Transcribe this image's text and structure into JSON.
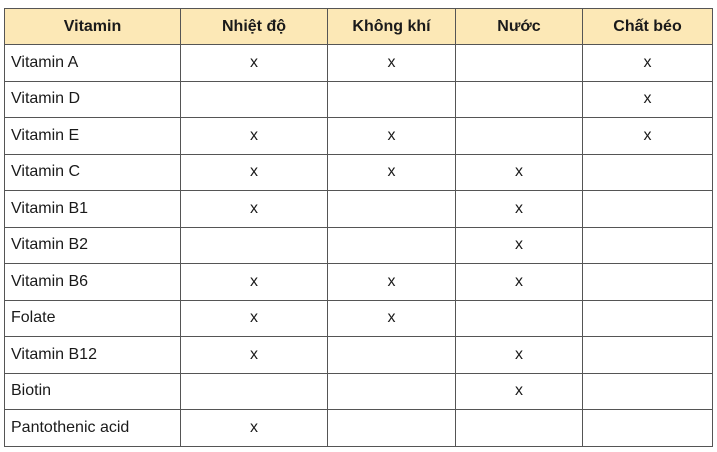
{
  "table": {
    "headers": [
      "Vitamin",
      "Nhiệt độ",
      "Không khí",
      "Nước",
      "Chất béo"
    ],
    "rows": [
      [
        "Vitamin A",
        "x",
        "x",
        "",
        "x"
      ],
      [
        "Vitamin D",
        "",
        "",
        "",
        "x"
      ],
      [
        "Vitamin E",
        "x",
        "x",
        "",
        "x"
      ],
      [
        "Vitamin C",
        "x",
        "x",
        "x",
        ""
      ],
      [
        "Vitamin B1",
        "x",
        "",
        "x",
        ""
      ],
      [
        "Vitamin B2",
        "",
        "",
        "x",
        ""
      ],
      [
        "Vitamin B6",
        "x",
        "x",
        "x",
        ""
      ],
      [
        "Folate",
        "x",
        "x",
        "",
        ""
      ],
      [
        "Vitamin B12",
        "x",
        "",
        "x",
        ""
      ],
      [
        "Biotin",
        "",
        "",
        "x",
        ""
      ],
      [
        "Pantothenic acid",
        "x",
        "",
        "",
        ""
      ]
    ]
  }
}
